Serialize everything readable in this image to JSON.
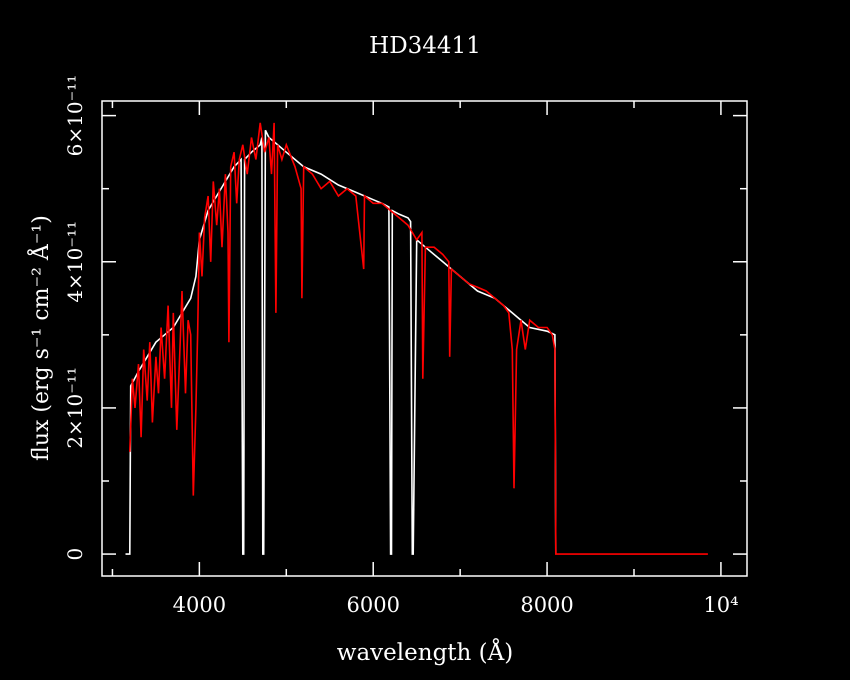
{
  "chart_data": {
    "type": "line",
    "title": "HD34411",
    "xlabel": "wavelength (Å)",
    "ylabel": "flux (erg s⁻¹ cm⁻² Å⁻¹)",
    "xlim": [
      2880,
      10300
    ],
    "ylim": [
      -3e-12,
      6.2e-11
    ],
    "x_ticks": [
      {
        "value": 4000,
        "label": "4000"
      },
      {
        "value": 6000,
        "label": "6000"
      },
      {
        "value": 8000,
        "label": "8000"
      },
      {
        "value": 10000,
        "label": "10⁴"
      }
    ],
    "y_ticks": [
      {
        "value": 0,
        "label": "0"
      },
      {
        "value": 2e-11,
        "label": "2×10⁻¹¹"
      },
      {
        "value": 4e-11,
        "label": "4×10⁻¹¹"
      },
      {
        "value": 6e-11,
        "label": "6×10⁻¹¹"
      }
    ],
    "grid": false,
    "background": "#000000",
    "axis_color": "#ffffff",
    "series": [
      {
        "color": "#ffffff",
        "x": [
          3150,
          3200,
          3210,
          3300,
          3400,
          3500,
          3600,
          3700,
          3800,
          3900,
          3960,
          4000,
          4100,
          4200,
          4300,
          4400,
          4480,
          4500,
          4510,
          4520,
          4600,
          4700,
          4720,
          4730,
          4740,
          4760,
          4800,
          4900,
          5000,
          5200,
          5400,
          5600,
          5800,
          6000,
          6100,
          6180,
          6200,
          6210,
          6220,
          6300,
          6400,
          6430,
          6450,
          6460,
          6500,
          6600,
          6800,
          7000,
          7200,
          7400,
          7600,
          7700,
          7800,
          8000,
          8090,
          8100
        ],
        "y": [
          0,
          0,
          2.3e-11,
          2.5e-11,
          2.7e-11,
          2.9e-11,
          3e-11,
          3.1e-11,
          3.3e-11,
          3.5e-11,
          3.8e-11,
          4.3e-11,
          4.7e-11,
          4.9e-11,
          5.1e-11,
          5.3e-11,
          5.4e-11,
          0,
          0,
          5.4e-11,
          5.5e-11,
          5.6e-11,
          5.7e-11,
          0,
          0,
          5.8e-11,
          5.7e-11,
          5.6e-11,
          5.5e-11,
          5.3e-11,
          5.2e-11,
          5.05e-11,
          4.95e-11,
          4.85e-11,
          4.8e-11,
          4.75e-11,
          0,
          0,
          4.7e-11,
          4.65e-11,
          4.6e-11,
          4.55e-11,
          0,
          0,
          4.3e-11,
          4.2e-11,
          4e-11,
          3.8e-11,
          3.6e-11,
          3.5e-11,
          3.3e-11,
          3.2e-11,
          3.1e-11,
          3.05e-11,
          3e-11,
          0
        ]
      },
      {
        "color": "#ff0000",
        "x": [
          3200,
          3230,
          3260,
          3300,
          3330,
          3360,
          3400,
          3430,
          3460,
          3500,
          3530,
          3560,
          3600,
          3640,
          3680,
          3700,
          3740,
          3780,
          3800,
          3840,
          3870,
          3900,
          3930,
          3960,
          3980,
          4000,
          4030,
          4060,
          4100,
          4130,
          4160,
          4200,
          4230,
          4260,
          4300,
          4330,
          4340,
          4360,
          4400,
          4430,
          4460,
          4500,
          4550,
          4600,
          4650,
          4700,
          4750,
          4800,
          4830,
          4860,
          4880,
          4900,
          4950,
          5000,
          5100,
          5170,
          5180,
          5200,
          5300,
          5400,
          5500,
          5600,
          5700,
          5800,
          5890,
          5900,
          6000,
          6100,
          6200,
          6300,
          6400,
          6500,
          6560,
          6570,
          6600,
          6700,
          6800,
          6870,
          6880,
          6900,
          7000,
          7100,
          7200,
          7300,
          7400,
          7500,
          7560,
          7600,
          7620,
          7650,
          7700,
          7750,
          7800,
          7900,
          8000,
          8060,
          8090,
          8100,
          9000,
          9850
        ],
        "y": [
          1.4e-11,
          2.4e-11,
          2e-11,
          2.6e-11,
          1.6e-11,
          2.8e-11,
          2.1e-11,
          2.9e-11,
          1.8e-11,
          2.7e-11,
          2.2e-11,
          3.1e-11,
          2.4e-11,
          3.4e-11,
          2e-11,
          3.3e-11,
          1.7e-11,
          2.9e-11,
          3.6e-11,
          2.2e-11,
          3.2e-11,
          3e-11,
          8e-12,
          2e-11,
          3e-11,
          4.4e-11,
          3.8e-11,
          4.6e-11,
          4.9e-11,
          4e-11,
          5.1e-11,
          4.5e-11,
          5e-11,
          4.2e-11,
          5.2e-11,
          4.4e-11,
          2.9e-11,
          5.3e-11,
          5.5e-11,
          4.8e-11,
          5.4e-11,
          5.6e-11,
          5.2e-11,
          5.7e-11,
          5.4e-11,
          5.9e-11,
          5.5e-11,
          5.7e-11,
          5.2e-11,
          5.9e-11,
          3.3e-11,
          5.6e-11,
          5.4e-11,
          5.6e-11,
          5.3e-11,
          5e-11,
          3.5e-11,
          5.3e-11,
          5.2e-11,
          5e-11,
          5.1e-11,
          4.9e-11,
          5e-11,
          4.9e-11,
          3.9e-11,
          4.9e-11,
          4.8e-11,
          4.8e-11,
          4.7e-11,
          4.6e-11,
          4.5e-11,
          4.3e-11,
          4.4e-11,
          2.4e-11,
          4.2e-11,
          4.2e-11,
          4.1e-11,
          4e-11,
          2.7e-11,
          3.9e-11,
          3.8e-11,
          3.7e-11,
          3.65e-11,
          3.6e-11,
          3.5e-11,
          3.4e-11,
          3.3e-11,
          2.8e-11,
          9e-12,
          2.8e-11,
          3.2e-11,
          2.8e-11,
          3.2e-11,
          3.1e-11,
          3.1e-11,
          3e-11,
          2.8e-11,
          0,
          0,
          0
        ]
      }
    ]
  }
}
